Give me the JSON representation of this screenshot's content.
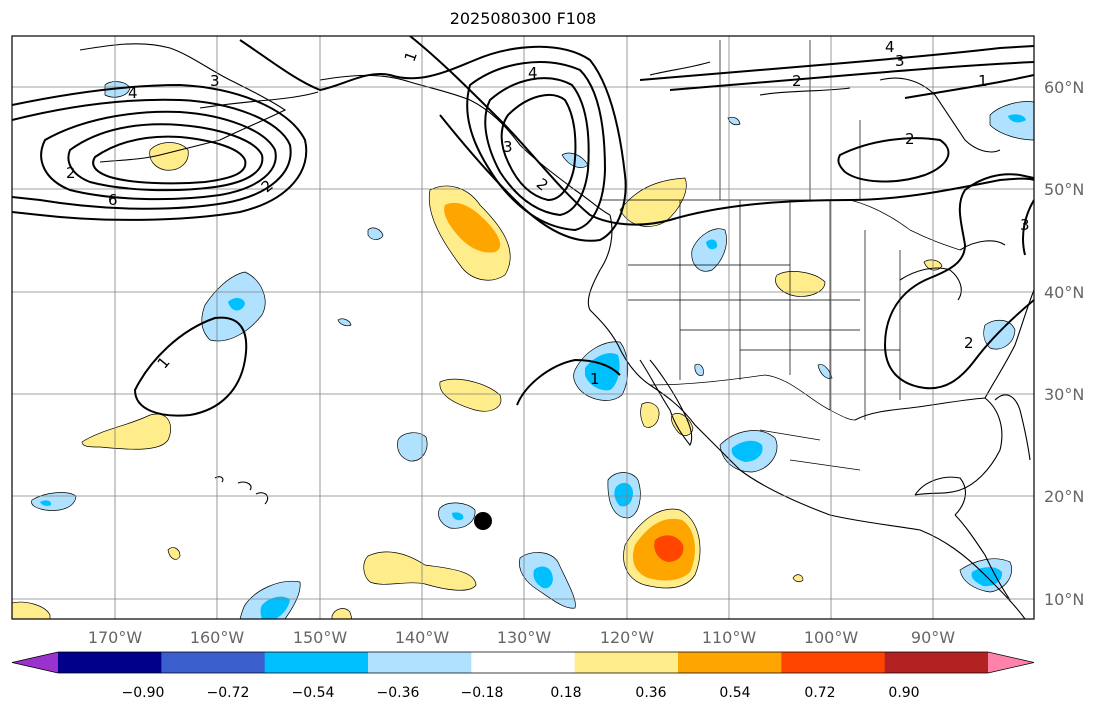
{
  "title": "2025080300 F108",
  "longitude_labels": [
    "170°W",
    "160°W",
    "150°W",
    "140°W",
    "130°W",
    "120°W",
    "110°W",
    "100°W",
    "90°W"
  ],
  "latitude_labels": [
    "60°N",
    "50°N",
    "40°N",
    "30°N",
    "20°N",
    "10°N"
  ],
  "colorbar": {
    "tick_labels": [
      "−0.90",
      "−0.72",
      "−0.54",
      "−0.36",
      "−0.18",
      "0.18",
      "0.36",
      "0.54",
      "0.72",
      "0.90"
    ],
    "colors": [
      "#9a32cd",
      "#00008b",
      "#3a5fcd",
      "#00bfff",
      "#b0e2ff",
      "#ffffff",
      "#ffec8b",
      "#ffa500",
      "#ff4500",
      "#b22222",
      "#ff82ab"
    ]
  },
  "contour_labels": [
    "1",
    "2",
    "3",
    "4",
    "6",
    "2",
    "3",
    "4",
    "1",
    "2",
    "4",
    "2",
    "3",
    "1",
    "1",
    "2",
    "2",
    "3"
  ],
  "marker": {
    "name": "black dot",
    "color": "#000000"
  }
}
